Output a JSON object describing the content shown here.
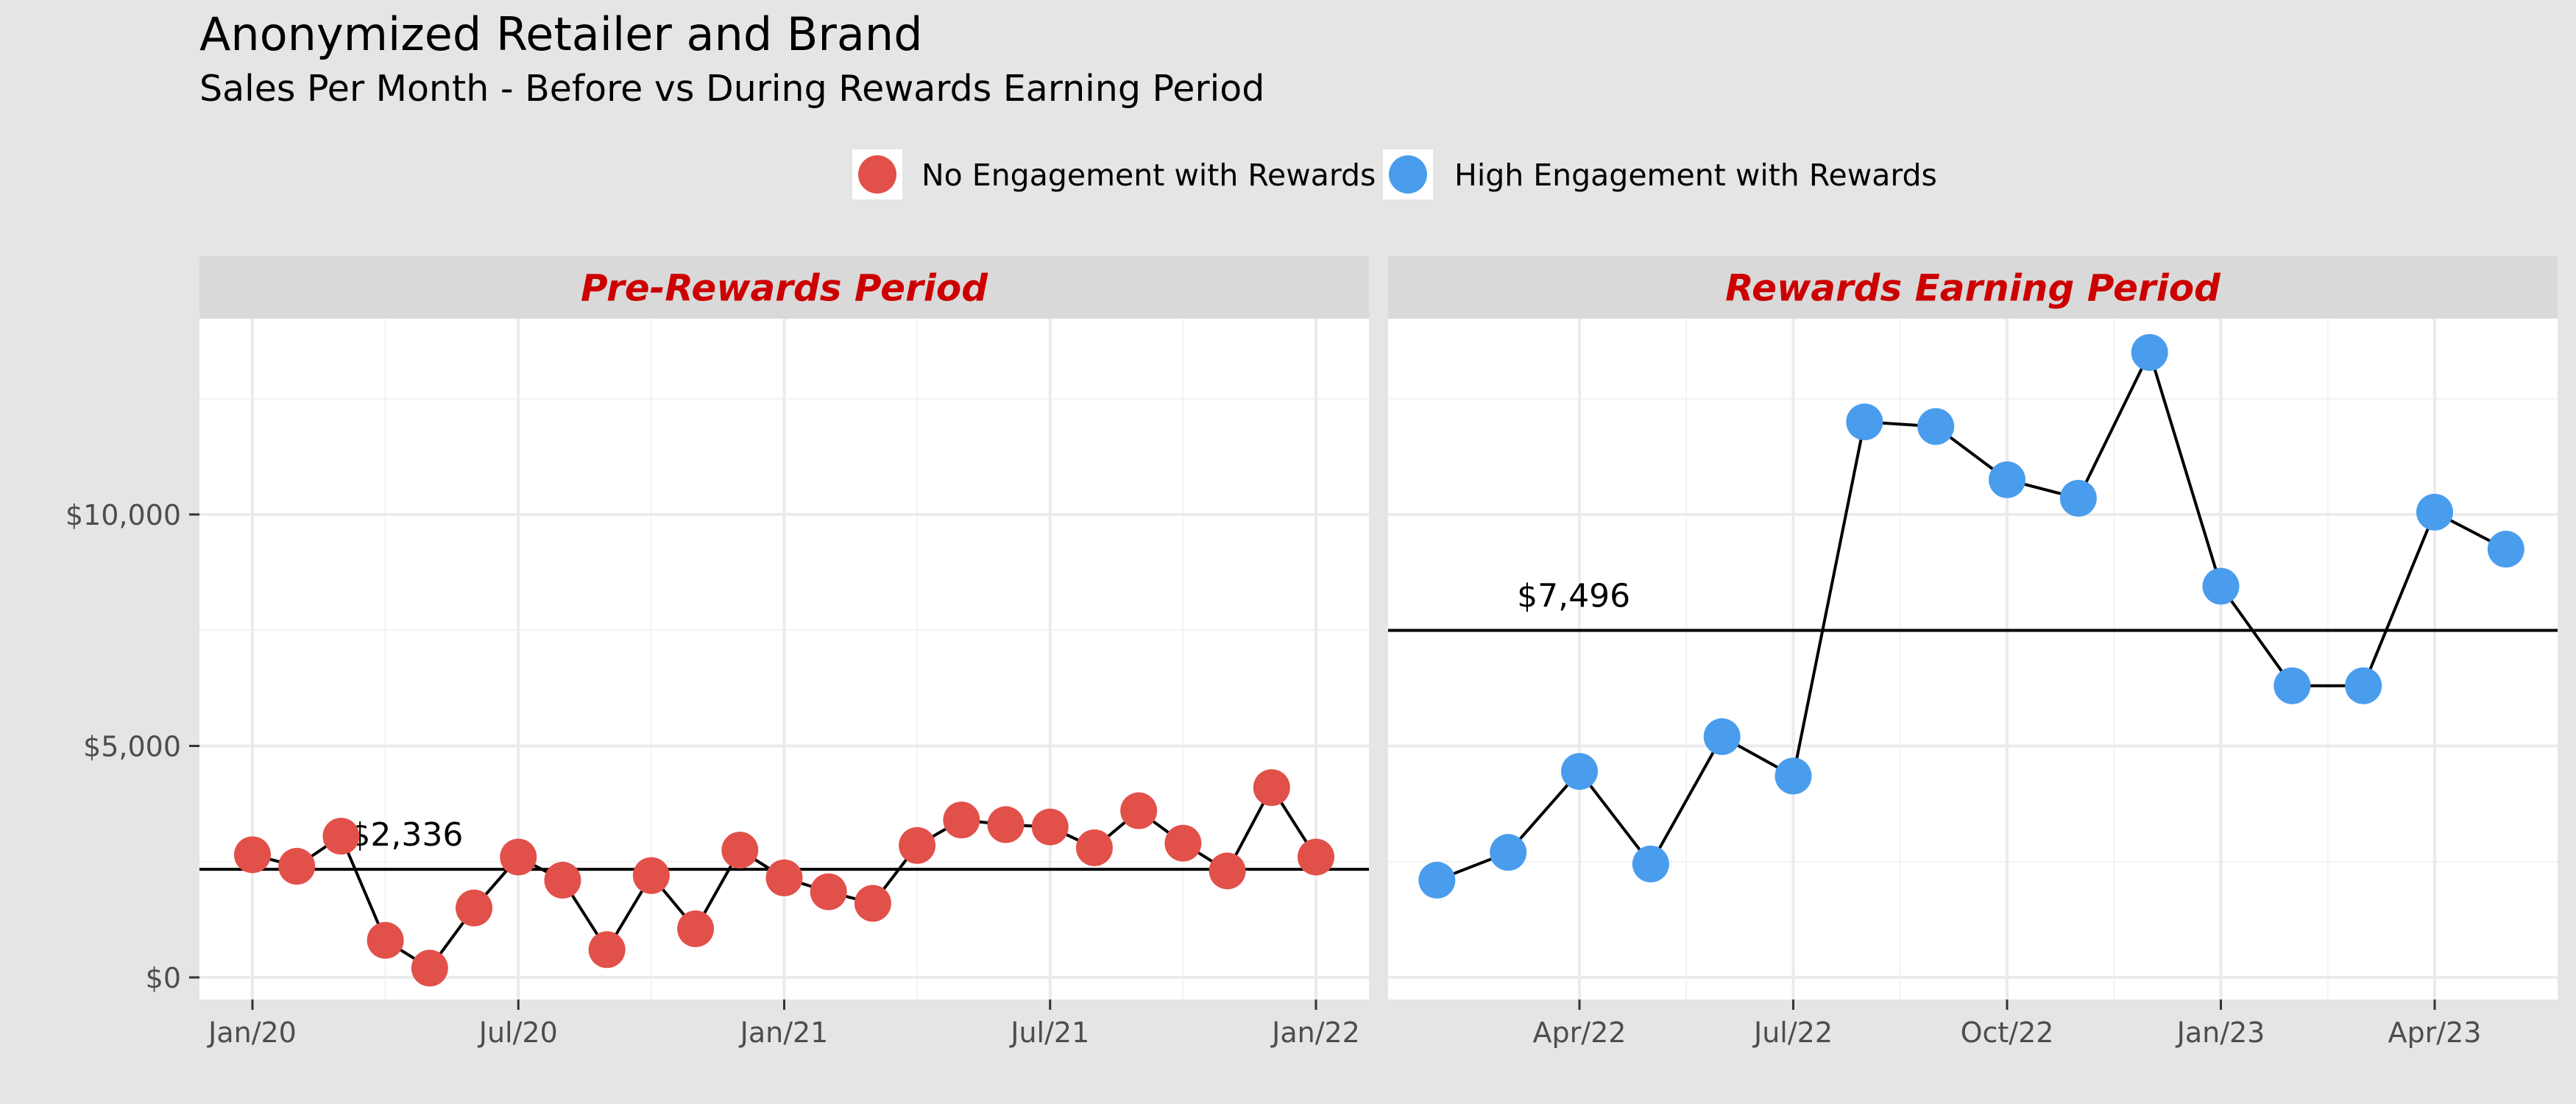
{
  "title": "Anonymized Retailer and Brand",
  "subtitle": "Sales Per Month - Before vs During Rewards Earning Period",
  "chart_data": {
    "type": "line",
    "legend": {
      "position": "top",
      "entries": [
        {
          "name": "No Engagement with Rewards",
          "color": "#e2504a"
        },
        {
          "name": "High Engagement with Rewards",
          "color": "#4a9ded"
        }
      ]
    },
    "grid": true,
    "y_ticks": [
      {
        "value": 0,
        "label": "$0"
      },
      {
        "value": 5000,
        "label": "$5,000"
      },
      {
        "value": 10000,
        "label": "$10,000"
      }
    ],
    "panels": [
      {
        "title": "Pre-Rewards Period",
        "title_color": "#cc0000",
        "series_name": "No Engagement with Rewards",
        "color": "#e2504a",
        "x_ticks": [
          {
            "value": "2020-01",
            "label": "Jan/20"
          },
          {
            "value": "2020-07",
            "label": "Jul/20"
          },
          {
            "value": "2021-01",
            "label": "Jan/21"
          },
          {
            "value": "2021-07",
            "label": "Jul/21"
          },
          {
            "value": "2022-01",
            "label": "Jan/22"
          }
        ],
        "mean_line": {
          "value": 2336,
          "label": "$2,336",
          "label_at": "2020-03"
        },
        "points": [
          {
            "x": "2020-01",
            "y": 2650
          },
          {
            "x": "2020-02",
            "y": 2400
          },
          {
            "x": "2020-03",
            "y": 3050
          },
          {
            "x": "2020-04",
            "y": 800
          },
          {
            "x": "2020-05",
            "y": 200
          },
          {
            "x": "2020-06",
            "y": 1500
          },
          {
            "x": "2020-07",
            "y": 2600
          },
          {
            "x": "2020-08",
            "y": 2100
          },
          {
            "x": "2020-09",
            "y": 600
          },
          {
            "x": "2020-10",
            "y": 2200
          },
          {
            "x": "2020-11",
            "y": 1050
          },
          {
            "x": "2020-12",
            "y": 2750
          },
          {
            "x": "2021-01",
            "y": 2150
          },
          {
            "x": "2021-02",
            "y": 1850
          },
          {
            "x": "2021-03",
            "y": 1600
          },
          {
            "x": "2021-04",
            "y": 2850
          },
          {
            "x": "2021-05",
            "y": 3400
          },
          {
            "x": "2021-06",
            "y": 3300
          },
          {
            "x": "2021-07",
            "y": 3250
          },
          {
            "x": "2021-08",
            "y": 2800
          },
          {
            "x": "2021-09",
            "y": 3600
          },
          {
            "x": "2021-10",
            "y": 2900
          },
          {
            "x": "2021-11",
            "y": 2300
          },
          {
            "x": "2021-12",
            "y": 4100
          },
          {
            "x": "2022-01",
            "y": 2600
          }
        ]
      },
      {
        "title": "Rewards Earning Period",
        "title_color": "#cc0000",
        "series_name": "High Engagement with Rewards",
        "color": "#4a9ded",
        "x_ticks": [
          {
            "value": "2022-04",
            "label": "Apr/22"
          },
          {
            "value": "2022-07",
            "label": "Jul/22"
          },
          {
            "value": "2022-10",
            "label": "Oct/22"
          },
          {
            "value": "2023-01",
            "label": "Jan/23"
          },
          {
            "value": "2023-04",
            "label": "Apr/23"
          }
        ],
        "mean_line": {
          "value": 7496,
          "label": "$7,496",
          "label_at": "2022-03"
        },
        "points": [
          {
            "x": "2022-02",
            "y": 2100
          },
          {
            "x": "2022-03",
            "y": 2700
          },
          {
            "x": "2022-04",
            "y": 4450
          },
          {
            "x": "2022-05",
            "y": 2450
          },
          {
            "x": "2022-06",
            "y": 5200
          },
          {
            "x": "2022-07",
            "y": 4350
          },
          {
            "x": "2022-08",
            "y": 12000
          },
          {
            "x": "2022-09",
            "y": 11900
          },
          {
            "x": "2022-10",
            "y": 10750
          },
          {
            "x": "2022-11",
            "y": 10350
          },
          {
            "x": "2022-12",
            "y": 13500
          },
          {
            "x": "2023-01",
            "y": 8450
          },
          {
            "x": "2023-02",
            "y": 6300
          },
          {
            "x": "2023-03",
            "y": 6300
          },
          {
            "x": "2023-04",
            "y": 10050
          },
          {
            "x": "2023-05",
            "y": 9250
          }
        ]
      }
    ]
  }
}
